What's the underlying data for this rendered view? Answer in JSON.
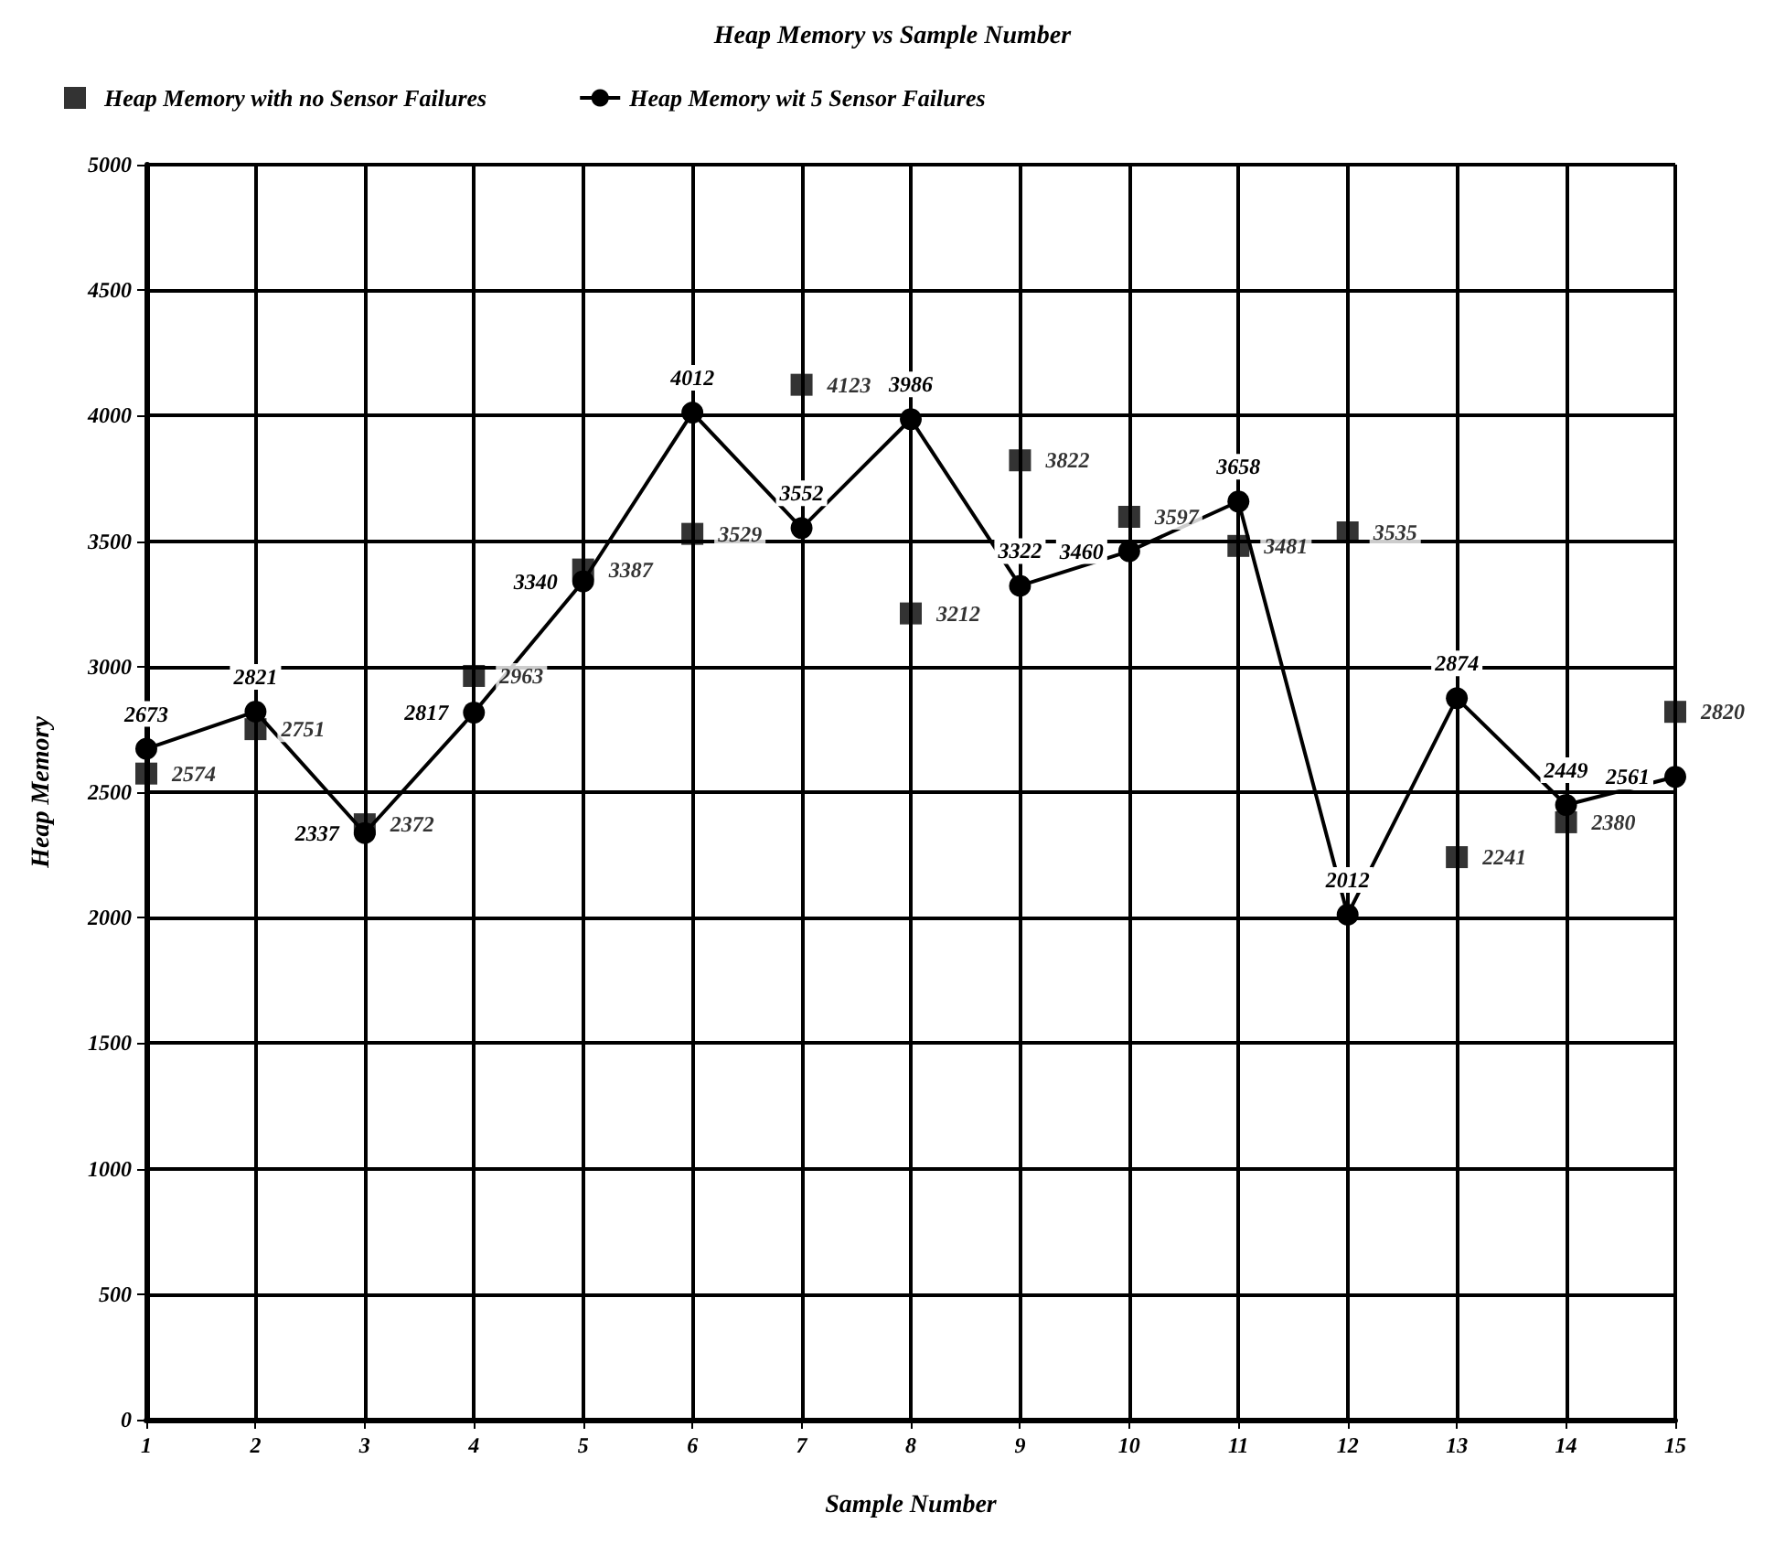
{
  "chart_data": {
    "type": "line",
    "title": "Heap Memory vs Sample Number",
    "xlabel": "Sample Number",
    "ylabel": "Heap Memory",
    "x": [
      1,
      2,
      3,
      4,
      5,
      6,
      7,
      8,
      9,
      10,
      11,
      12,
      13,
      14,
      15
    ],
    "series": [
      {
        "name": "Heap Memory with no Sensor Failures",
        "type": "scatter",
        "marker": "square",
        "color": "#000000",
        "values": [
          2574,
          2751,
          2372,
          2963,
          3387,
          3529,
          4123,
          3212,
          3822,
          3597,
          3481,
          3535,
          2241,
          2380,
          2820
        ]
      },
      {
        "name": "Heap Memory wit 5 Sensor Failures",
        "type": "line",
        "marker": "circle",
        "line_style": "solid",
        "color": "#000000",
        "values": [
          2673,
          2821,
          2337,
          2817,
          3340,
          4012,
          3552,
          3986,
          3322,
          3460,
          3658,
          2012,
          2874,
          2449,
          2561
        ]
      }
    ],
    "xlim": [
      1,
      15
    ],
    "xticks": [
      1,
      2,
      3,
      4,
      5,
      6,
      7,
      8,
      9,
      10,
      11,
      12,
      13,
      14,
      15
    ],
    "ylim": [
      0,
      5000
    ],
    "yticks": [
      0,
      500,
      1000,
      1500,
      2000,
      2500,
      3000,
      3500,
      4000,
      4500,
      5000
    ],
    "grid": true,
    "legend": "top left",
    "data_labels": true
  }
}
